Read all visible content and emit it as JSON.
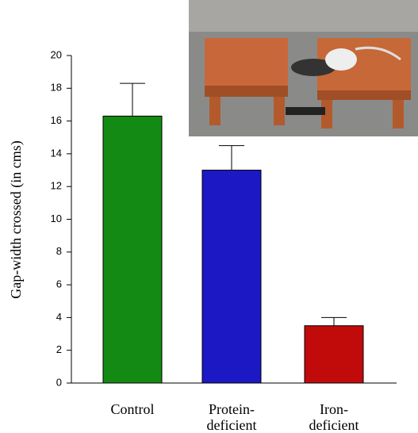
{
  "chart_data": {
    "type": "bar",
    "y_label": "Gap-width crossed (in cms)",
    "categories": [
      [
        "Control"
      ],
      [
        "Protein-",
        "deficient"
      ],
      [
        "Iron-",
        "deficient"
      ]
    ],
    "values": [
      16.3,
      13.0,
      3.5
    ],
    "errors": [
      2.0,
      1.5,
      0.5
    ],
    "colors": [
      "#138a13",
      "#1c18c4",
      "#c10b0b"
    ],
    "ylim": [
      0,
      20
    ],
    "yticks": [
      0,
      2,
      4,
      6,
      8,
      10,
      12,
      14,
      16,
      18,
      20
    ]
  }
}
